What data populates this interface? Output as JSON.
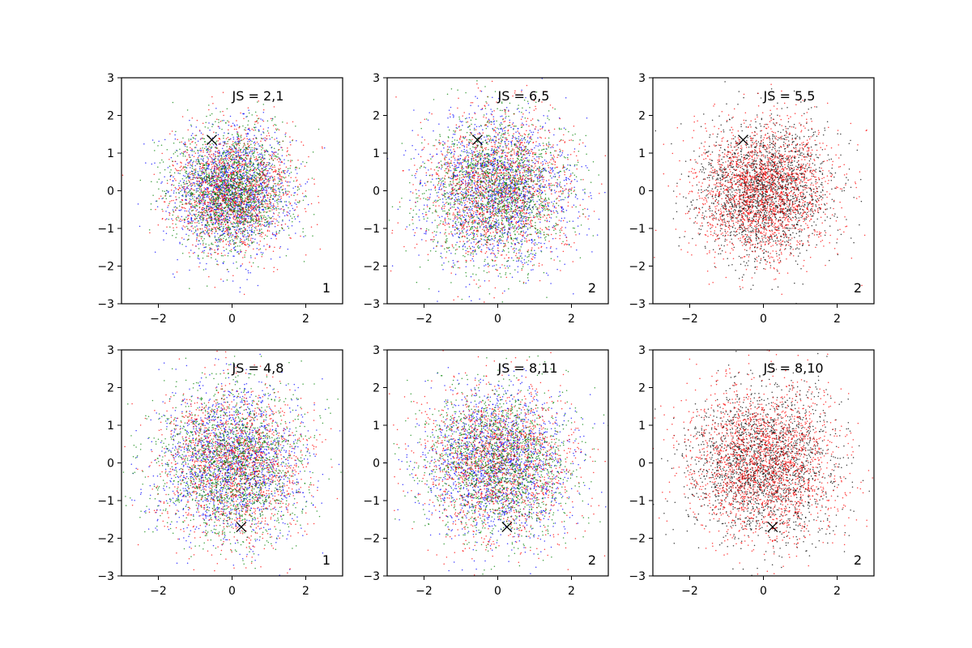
{
  "colors": {
    "blue": "#0000ff",
    "red": "#ff0000",
    "green": "#008000",
    "black": "#000000",
    "marker": "#000000"
  },
  "chart_data": [
    {
      "type": "scatter",
      "panel_text": "JS = 2,1",
      "corner_text": "1",
      "series_colors": [
        "blue",
        "red",
        "green"
      ],
      "points_per_series": 1600,
      "distribution": "standard normal (mean 0, sd ~0.8)",
      "marker": {
        "x": -0.55,
        "y": 1.35
      },
      "xlim": [
        -3,
        3
      ],
      "ylim": [
        -3,
        3
      ],
      "xticks": [
        -2,
        0,
        2
      ],
      "yticks": [
        -3,
        -2,
        -1,
        0,
        1,
        2,
        3
      ]
    },
    {
      "type": "scatter",
      "panel_text": "JS = 6,5",
      "corner_text": "2",
      "series_colors": [
        "blue",
        "red",
        "green"
      ],
      "points_per_series": 1600,
      "distribution": "standard normal (mean 0, sd ~1.0)",
      "marker": {
        "x": -0.55,
        "y": 1.35
      },
      "xlim": [
        -3,
        3
      ],
      "ylim": [
        -3,
        3
      ],
      "xticks": [
        -2,
        0,
        2
      ],
      "yticks": [
        -3,
        -2,
        -1,
        0,
        1,
        2,
        3
      ]
    },
    {
      "type": "scatter",
      "panel_text": "JS = 5,5",
      "corner_text": "2",
      "series_colors": [
        "black",
        "red"
      ],
      "points_per_series": 2000,
      "distribution": "standard normal (mean 0, sd ~0.9)",
      "marker": {
        "x": -0.55,
        "y": 1.35
      },
      "xlim": [
        -3,
        3
      ],
      "ylim": [
        -3,
        3
      ],
      "xticks": [
        -2,
        0,
        2
      ],
      "yticks": [
        -3,
        -2,
        -1,
        0,
        1,
        2,
        3
      ]
    },
    {
      "type": "scatter",
      "panel_text": "JS = 4,8",
      "corner_text": "1",
      "series_colors": [
        "blue",
        "red",
        "green"
      ],
      "points_per_series": 1600,
      "distribution": "standard normal (mean 0, sd ~1.0)",
      "marker": {
        "x": 0.25,
        "y": -1.7
      },
      "xlim": [
        -3,
        3
      ],
      "ylim": [
        -3,
        3
      ],
      "xticks": [
        -2,
        0,
        2
      ],
      "yticks": [
        -3,
        -2,
        -1,
        0,
        1,
        2,
        3
      ]
    },
    {
      "type": "scatter",
      "panel_text": "JS = 8,11",
      "corner_text": "2",
      "series_colors": [
        "blue",
        "red",
        "green"
      ],
      "points_per_series": 1600,
      "distribution": "standard normal (mean 0, sd ~1.0)",
      "marker": {
        "x": 0.25,
        "y": -1.7
      },
      "xlim": [
        -3,
        3
      ],
      "ylim": [
        -3,
        3
      ],
      "xticks": [
        -2,
        0,
        2
      ],
      "yticks": [
        -3,
        -2,
        -1,
        0,
        1,
        2,
        3
      ]
    },
    {
      "type": "scatter",
      "panel_text": "JS = 8,10",
      "corner_text": "2",
      "series_colors": [
        "black",
        "red"
      ],
      "points_per_series": 2000,
      "distribution": "standard normal (mean 0, sd ~1.0)",
      "marker": {
        "x": 0.25,
        "y": -1.7
      },
      "xlim": [
        -3,
        3
      ],
      "ylim": [
        -3,
        3
      ],
      "xticks": [
        -2,
        0,
        2
      ],
      "yticks": [
        -3,
        -2,
        -1,
        0,
        1,
        2,
        3
      ]
    }
  ]
}
